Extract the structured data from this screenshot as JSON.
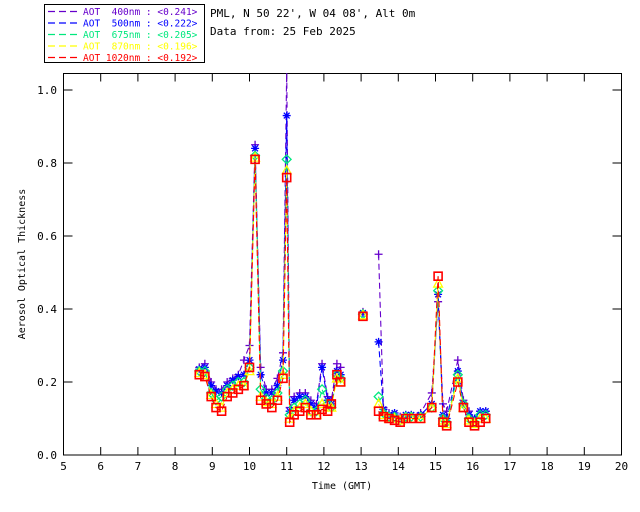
{
  "header": {
    "site_line": "PML, N 50 22', W 04 08', Alt 0m",
    "date_line": "Data from: 25 Feb 2025"
  },
  "legend": {
    "items": [
      {
        "text": "AOT  400nm : <0.241>",
        "color": "#6600CC",
        "marker": "plus"
      },
      {
        "text": "AOT  500nm : <0.222>",
        "color": "#0000FF",
        "marker": "asterisk"
      },
      {
        "text": "AOT  675nm : <0.205>",
        "color": "#00E87E",
        "marker": "diamond"
      },
      {
        "text": "AOT  870nm : <0.196>",
        "color": "#FFFF00",
        "marker": "triangle"
      },
      {
        "text": "AOT 1020nm : <0.192>",
        "color": "#FF0000",
        "marker": "square"
      }
    ]
  },
  "chart_data": {
    "type": "line",
    "title": "",
    "xlabel": "Time (GMT)",
    "ylabel": "Aerosol Optical Thickness",
    "xlim": [
      5,
      20
    ],
    "ylim": [
      0.0,
      1.047
    ],
    "xticks": [
      5,
      6,
      7,
      8,
      9,
      10,
      11,
      12,
      13,
      14,
      15,
      16,
      17,
      18,
      19,
      20
    ],
    "yticks": [
      0.0,
      0.2,
      0.4,
      0.6,
      0.8,
      1.0
    ],
    "grid": false,
    "line_style": "dashed",
    "legend_position": "top-left-outside",
    "series": [
      {
        "name": "AOT 400nm",
        "mean": 0.241,
        "color": "#6600CC",
        "marker": "plus",
        "segments": [
          {
            "t": [
              8.65,
              8.8,
              8.97,
              9.1,
              9.25,
              9.4,
              9.55,
              9.7,
              9.85,
              10.0,
              10.15,
              10.3,
              10.45,
              10.6,
              10.75,
              10.9,
              11.0,
              11.08,
              11.2,
              11.35,
              11.5,
              11.65,
              11.8,
              11.95,
              12.1,
              12.2,
              12.35,
              12.45
            ],
            "v": [
              0.24,
              0.25,
              0.2,
              0.18,
              0.18,
              0.2,
              0.21,
              0.22,
              0.26,
              0.3,
              0.85,
              0.24,
              0.18,
              0.18,
              0.21,
              0.28,
              1.06,
              0.13,
              0.16,
              0.17,
              0.17,
              0.15,
              0.14,
              0.25,
              0.16,
              0.15,
              0.25,
              0.24
            ]
          },
          {
            "t": [
              13.05
            ],
            "v": [
              0.392
            ]
          },
          {
            "t": [
              13.47,
              13.6,
              13.75,
              13.9,
              14.05,
              14.2,
              14.35,
              14.6,
              14.9,
              15.07,
              15.2,
              15.3,
              15.6,
              15.75,
              15.9,
              16.05,
              16.2,
              16.35
            ],
            "v": [
              0.55,
              0.13,
              0.115,
              0.11,
              0.105,
              0.11,
              0.11,
              0.115,
              0.17,
              0.42,
              0.14,
              0.12,
              0.26,
              0.15,
              0.12,
              0.1,
              0.12,
              0.12
            ]
          }
        ]
      },
      {
        "name": "AOT 500nm",
        "mean": 0.222,
        "color": "#0000FF",
        "marker": "asterisk",
        "segments": [
          {
            "t": [
              8.65,
              8.8,
              8.97,
              9.1,
              9.25,
              9.4,
              9.55,
              9.7,
              9.85,
              10.0,
              10.15,
              10.3,
              10.45,
              10.6,
              10.75,
              10.9,
              11.0,
              11.08,
              11.2,
              11.35,
              11.5,
              11.65,
              11.8,
              11.95,
              12.1,
              12.2,
              12.35,
              12.45
            ],
            "v": [
              0.235,
              0.24,
              0.19,
              0.175,
              0.17,
              0.19,
              0.205,
              0.215,
              0.22,
              0.26,
              0.84,
              0.22,
              0.17,
              0.17,
              0.19,
              0.26,
              0.93,
              0.12,
              0.15,
              0.16,
              0.16,
              0.14,
              0.13,
              0.24,
              0.15,
              0.14,
              0.23,
              0.22
            ]
          },
          {
            "t": [
              13.05
            ],
            "v": [
              0.389
            ]
          },
          {
            "t": [
              13.47,
              13.6,
              13.75,
              13.9,
              14.05,
              14.2,
              14.35,
              14.6,
              14.9,
              15.07,
              15.2,
              15.3,
              15.6,
              15.75,
              15.9,
              16.05,
              16.2,
              16.35
            ],
            "v": [
              0.31,
              0.125,
              0.11,
              0.115,
              0.1,
              0.11,
              0.11,
              0.11,
              0.14,
              0.44,
              0.11,
              0.1,
              0.23,
              0.14,
              0.11,
              0.1,
              0.12,
              0.12
            ]
          }
        ]
      },
      {
        "name": "AOT 675nm",
        "mean": 0.205,
        "color": "#00E87E",
        "marker": "diamond",
        "segments": [
          {
            "t": [
              8.65,
              8.8,
              8.97,
              9.1,
              9.25,
              9.4,
              9.55,
              9.7,
              9.85,
              10.0,
              10.15,
              10.3,
              10.45,
              10.6,
              10.75,
              10.9,
              11.0,
              11.08,
              11.2,
              11.35,
              11.5,
              11.65,
              11.8,
              11.95,
              12.1,
              12.2,
              12.35,
              12.45
            ],
            "v": [
              0.23,
              0.23,
              0.17,
              0.15,
              0.16,
              0.18,
              0.19,
              0.2,
              0.2,
              0.24,
              0.82,
              0.18,
              0.155,
              0.15,
              0.17,
              0.23,
              0.81,
              0.11,
              0.13,
              0.14,
              0.15,
              0.12,
              0.12,
              0.18,
              0.14,
              0.13,
              0.22,
              0.21
            ]
          },
          {
            "t": [
              13.05
            ],
            "v": [
              0.386
            ]
          },
          {
            "t": [
              13.47,
              13.6,
              13.75,
              13.9,
              14.05,
              14.2,
              14.35,
              14.6,
              14.9,
              15.07,
              15.2,
              15.3,
              15.6,
              15.75,
              15.9,
              16.05,
              16.2,
              16.35
            ],
            "v": [
              0.16,
              0.115,
              0.105,
              0.105,
              0.095,
              0.105,
              0.105,
              0.105,
              0.13,
              0.45,
              0.1,
              0.09,
              0.22,
              0.14,
              0.1,
              0.09,
              0.11,
              0.11
            ]
          }
        ]
      },
      {
        "name": "AOT 870nm",
        "mean": 0.196,
        "color": "#FFFF00",
        "marker": "triangle",
        "segments": [
          {
            "t": [
              8.65,
              8.8,
              8.97,
              9.1,
              9.25,
              9.4,
              9.55,
              9.7,
              9.85,
              10.0,
              10.15,
              10.3,
              10.45,
              10.6,
              10.75,
              10.9,
              11.0,
              11.08,
              11.2,
              11.35,
              11.5,
              11.65,
              11.8,
              11.95,
              12.1,
              12.2,
              12.35,
              12.45
            ],
            "v": [
              0.225,
              0.22,
              0.165,
              0.14,
              0.13,
              0.17,
              0.18,
              0.19,
              0.19,
              0.23,
              0.815,
              0.16,
              0.145,
              0.14,
              0.16,
              0.22,
              0.78,
              0.1,
              0.12,
              0.13,
              0.14,
              0.12,
              0.11,
              0.14,
              0.13,
              0.13,
              0.21,
              0.2
            ]
          },
          {
            "t": [
              13.05
            ],
            "v": [
              0.383
            ]
          },
          {
            "t": [
              13.47,
              13.6,
              13.75,
              13.9,
              14.05,
              14.2,
              14.35,
              14.6,
              14.9,
              15.07,
              15.2,
              15.3,
              15.6,
              15.75,
              15.9,
              16.05,
              16.2,
              16.35
            ],
            "v": [
              0.14,
              0.11,
              0.1,
              0.1,
              0.095,
              0.1,
              0.1,
              0.1,
              0.13,
              0.47,
              0.095,
              0.085,
              0.21,
              0.13,
              0.095,
              0.085,
              0.1,
              0.1
            ]
          }
        ]
      },
      {
        "name": "AOT 1020nm",
        "mean": 0.192,
        "color": "#FF0000",
        "marker": "square",
        "segments": [
          {
            "t": [
              8.65,
              8.8,
              8.97,
              9.1,
              9.25,
              9.4,
              9.55,
              9.7,
              9.85,
              10.0,
              10.15,
              10.3,
              10.45,
              10.6,
              10.75,
              10.9,
              11.0,
              11.08,
              11.2,
              11.35,
              11.5,
              11.65,
              11.8,
              11.95,
              12.1,
              12.2,
              12.35,
              12.45
            ],
            "v": [
              0.22,
              0.215,
              0.16,
              0.13,
              0.12,
              0.16,
              0.17,
              0.18,
              0.19,
              0.24,
              0.81,
              0.15,
              0.14,
              0.13,
              0.15,
              0.21,
              0.76,
              0.09,
              0.11,
              0.12,
              0.13,
              0.11,
              0.11,
              0.125,
              0.12,
              0.14,
              0.22,
              0.2
            ]
          },
          {
            "t": [
              13.05
            ],
            "v": [
              0.38
            ]
          },
          {
            "t": [
              13.47,
              13.6,
              13.75,
              13.9,
              14.05,
              14.2,
              14.35,
              14.6,
              14.9,
              15.07,
              15.2,
              15.3,
              15.6,
              15.75,
              15.9,
              16.05,
              16.2,
              16.35
            ],
            "v": [
              0.12,
              0.105,
              0.1,
              0.095,
              0.09,
              0.1,
              0.1,
              0.1,
              0.13,
              0.49,
              0.09,
              0.08,
              0.2,
              0.13,
              0.09,
              0.08,
              0.09,
              0.1
            ]
          }
        ]
      }
    ]
  }
}
